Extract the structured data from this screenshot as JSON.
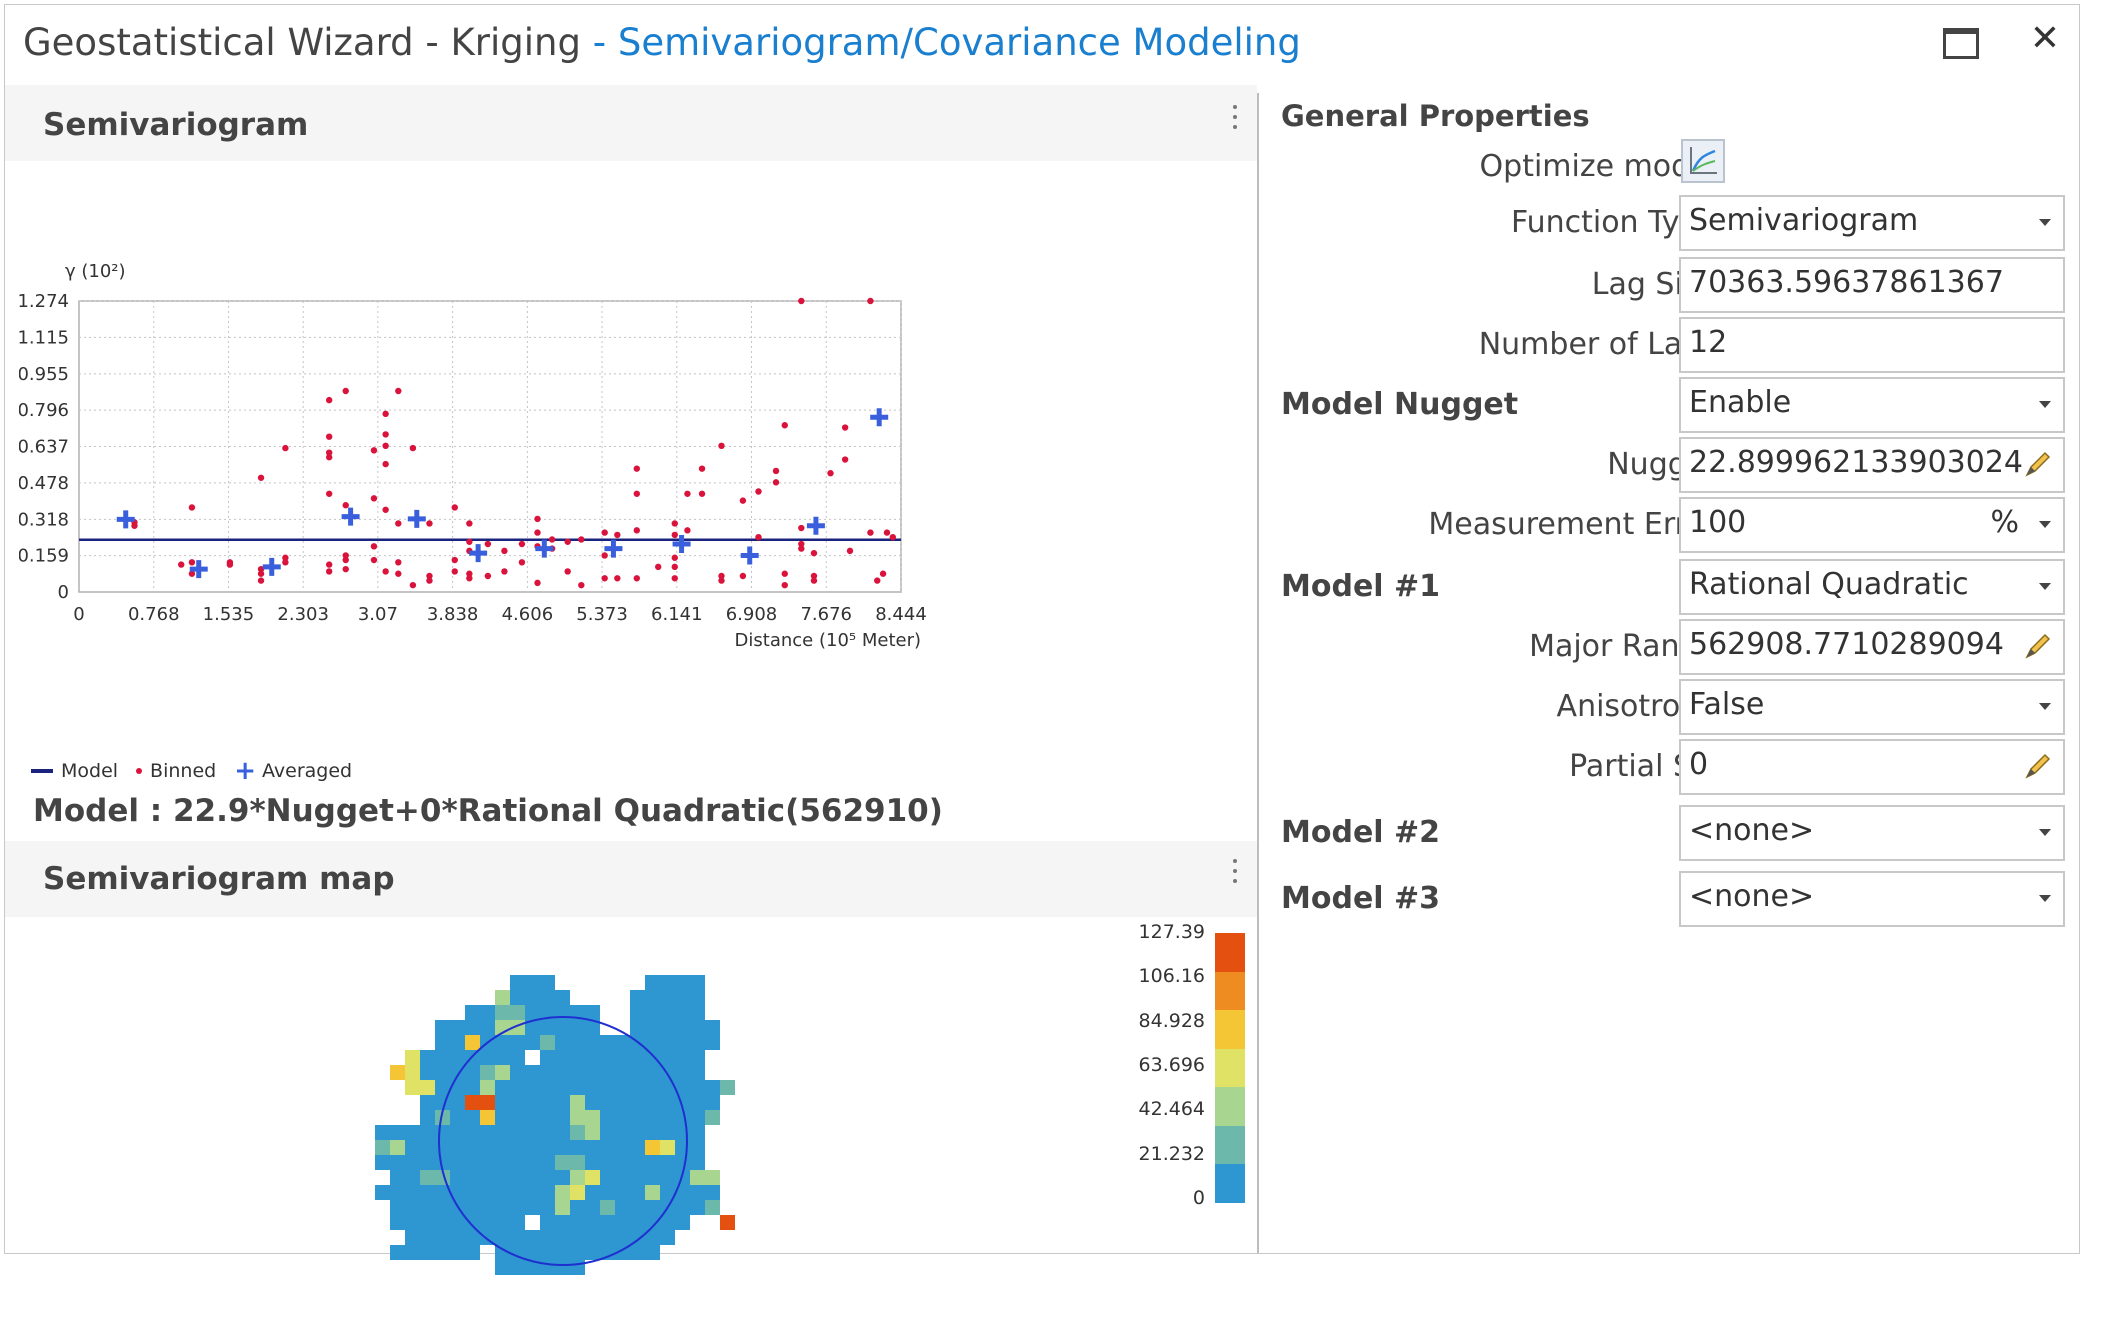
{
  "window": {
    "title_prefix": "Geostatistical Wizard - Kriging",
    "title_step": " - Semivariogram/Covariance Modeling",
    "maximize_label": "□",
    "close_label": "✕"
  },
  "semivariogram": {
    "section_title": "Semivariogram",
    "y_axis_label": "γ (10²)",
    "x_axis_label": "Distance (10⁵ Meter)",
    "y_ticks": [
      "1.274",
      "1.115",
      "0.955",
      "0.796",
      "0.637",
      "0.478",
      "0.318",
      "0.159",
      "0"
    ],
    "x_ticks": [
      "0",
      "0.768",
      "1.535",
      "2.303",
      "3.07",
      "3.838",
      "4.606",
      "5.373",
      "6.141",
      "6.908",
      "7.676",
      "8.444"
    ],
    "legend": {
      "model": "Model",
      "binned": "Binned",
      "averaged": "Averaged"
    },
    "model_equation": "Model : 22.9*Nugget+0*Rational Quadratic(562910)",
    "colors": {
      "model_line": "#1a237e",
      "binned": "#d9133b",
      "averaged": "#3a5fdc"
    }
  },
  "chart_data": {
    "type": "scatter",
    "xlabel": "Distance (10⁵ Meter)",
    "ylabel": "γ (10²)",
    "xlim": [
      0,
      8.444
    ],
    "ylim": [
      0,
      1.274
    ],
    "grid": true,
    "legend_position": "bottom-left",
    "series": [
      {
        "name": "Model",
        "kind": "line",
        "points": [
          [
            0,
            0.229
          ],
          [
            8.444,
            0.229
          ]
        ]
      },
      {
        "name": "Binned",
        "kind": "points",
        "points": [
          [
            0.57,
            0.305
          ],
          [
            0.57,
            0.29
          ],
          [
            1.16,
            0.37
          ],
          [
            1.16,
            0.13
          ],
          [
            1.16,
            0.08
          ],
          [
            1.05,
            0.12
          ],
          [
            1.55,
            0.13
          ],
          [
            1.55,
            0.12
          ],
          [
            1.87,
            0.5
          ],
          [
            1.87,
            0.1
          ],
          [
            1.87,
            0.05
          ],
          [
            1.87,
            0.08
          ],
          [
            2.12,
            0.63
          ],
          [
            2.12,
            0.15
          ],
          [
            2.12,
            0.13
          ],
          [
            2.57,
            0.84
          ],
          [
            2.57,
            0.68
          ],
          [
            2.57,
            0.61
          ],
          [
            2.57,
            0.59
          ],
          [
            2.57,
            0.43
          ],
          [
            2.57,
            0.12
          ],
          [
            2.57,
            0.09
          ],
          [
            2.74,
            0.88
          ],
          [
            2.74,
            0.38
          ],
          [
            2.74,
            0.16
          ],
          [
            2.74,
            0.14
          ],
          [
            2.74,
            0.1
          ],
          [
            3.03,
            0.62
          ],
          [
            3.03,
            0.41
          ],
          [
            3.03,
            0.2
          ],
          [
            3.03,
            0.14
          ],
          [
            3.15,
            0.78
          ],
          [
            3.15,
            0.69
          ],
          [
            3.15,
            0.64
          ],
          [
            3.15,
            0.56
          ],
          [
            3.15,
            0.36
          ],
          [
            3.15,
            0.09
          ],
          [
            3.28,
            0.88
          ],
          [
            3.28,
            0.3
          ],
          [
            3.28,
            0.13
          ],
          [
            3.28,
            0.08
          ],
          [
            3.43,
            0.63
          ],
          [
            3.43,
            0.03
          ],
          [
            3.6,
            0.3
          ],
          [
            3.6,
            0.07
          ],
          [
            3.6,
            0.05
          ],
          [
            3.86,
            0.37
          ],
          [
            3.86,
            0.14
          ],
          [
            3.86,
            0.09
          ],
          [
            4.01,
            0.3
          ],
          [
            4.01,
            0.22
          ],
          [
            4.01,
            0.18
          ],
          [
            4.01,
            0.08
          ],
          [
            4.01,
            0.06
          ],
          [
            4.2,
            0.21
          ],
          [
            4.2,
            0.07
          ],
          [
            4.37,
            0.18
          ],
          [
            4.37,
            0.09
          ],
          [
            4.55,
            0.13
          ],
          [
            4.55,
            0.21
          ],
          [
            4.71,
            0.32
          ],
          [
            4.71,
            0.26
          ],
          [
            4.71,
            0.2
          ],
          [
            4.71,
            0.04
          ],
          [
            4.86,
            0.19
          ],
          [
            4.86,
            0.23
          ],
          [
            5.02,
            0.22
          ],
          [
            5.02,
            0.09
          ],
          [
            5.16,
            0.23
          ],
          [
            5.16,
            0.03
          ],
          [
            5.4,
            0.26
          ],
          [
            5.4,
            0.16
          ],
          [
            5.4,
            0.06
          ],
          [
            5.53,
            0.25
          ],
          [
            5.53,
            0.06
          ],
          [
            5.73,
            0.54
          ],
          [
            5.73,
            0.43
          ],
          [
            5.73,
            0.27
          ],
          [
            5.73,
            0.06
          ],
          [
            5.95,
            0.11
          ],
          [
            6.12,
            0.3
          ],
          [
            6.12,
            0.25
          ],
          [
            6.12,
            0.15
          ],
          [
            6.12,
            0.11
          ],
          [
            6.12,
            0.06
          ],
          [
            6.25,
            0.43
          ],
          [
            6.25,
            0.27
          ],
          [
            6.4,
            0.54
          ],
          [
            6.4,
            0.43
          ],
          [
            6.6,
            0.64
          ],
          [
            6.6,
            0.07
          ],
          [
            6.6,
            0.05
          ],
          [
            6.82,
            0.4
          ],
          [
            6.82,
            0.07
          ],
          [
            6.98,
            0.44
          ],
          [
            6.98,
            0.24
          ],
          [
            7.16,
            0.53
          ],
          [
            7.16,
            0.48
          ],
          [
            7.25,
            0.73
          ],
          [
            7.25,
            0.08
          ],
          [
            7.25,
            0.03
          ],
          [
            7.42,
            1.274
          ],
          [
            7.42,
            0.21
          ],
          [
            7.42,
            0.19
          ],
          [
            7.42,
            0.28
          ],
          [
            7.55,
            0.17
          ],
          [
            7.55,
            0.07
          ],
          [
            7.55,
            0.05
          ],
          [
            7.72,
            0.52
          ],
          [
            7.87,
            0.72
          ],
          [
            7.87,
            0.58
          ],
          [
            7.92,
            0.18
          ],
          [
            8.13,
            1.274
          ],
          [
            8.13,
            0.26
          ],
          [
            8.2,
            0.05
          ],
          [
            8.26,
            0.08
          ],
          [
            8.3,
            0.26
          ],
          [
            8.36,
            0.24
          ]
        ]
      },
      {
        "name": "Averaged",
        "kind": "points",
        "points": [
          [
            0.48,
            0.318
          ],
          [
            1.23,
            0.1
          ],
          [
            1.98,
            0.11
          ],
          [
            2.79,
            0.33
          ],
          [
            3.47,
            0.32
          ],
          [
            4.1,
            0.17
          ],
          [
            4.78,
            0.19
          ],
          [
            5.49,
            0.19
          ],
          [
            6.19,
            0.21
          ],
          [
            6.89,
            0.16
          ],
          [
            7.57,
            0.29
          ],
          [
            8.22,
            0.765
          ]
        ]
      }
    ]
  },
  "semivariogram_map": {
    "section_title": "Semivariogram map",
    "colorbar_labels": [
      "127.39",
      "106.16",
      "84.928",
      "63.696",
      "42.464",
      "21.232",
      "0"
    ],
    "colorbar_colors": [
      "#e3500f",
      "#ee8c22",
      "#f4c636",
      "#dfe265",
      "#a8d58f",
      "#6cb9ab",
      "#2e96d1"
    ],
    "range_circle_color": "#1f2fd0"
  },
  "properties": {
    "section_title": "General Properties",
    "optimize_model": {
      "label": "Optimize model",
      "icon": "chart-optimize-icon"
    },
    "function_type": {
      "label": "Function Type",
      "value": "Semivariogram"
    },
    "lag_size": {
      "label": "Lag Size",
      "value": "70363.59637861367"
    },
    "number_of_lags": {
      "label": "Number of Lags",
      "value": "12"
    },
    "model_nugget": {
      "label": "Model Nugget",
      "value": "Enable"
    },
    "nugget": {
      "label": "Nugget",
      "value": "22.899962133903024"
    },
    "measurement_error": {
      "label": "Measurement Error",
      "value": "100",
      "unit": "%"
    },
    "model1": {
      "label": "Model #1",
      "value": "Rational Quadratic"
    },
    "major_range": {
      "label": "Major Range",
      "value": "562908.7710289094"
    },
    "anisotropy": {
      "label": "Anisotropy",
      "value": "False"
    },
    "partial_sill": {
      "label": "Partial Sill",
      "value": "0"
    },
    "model2": {
      "label": "Model #2",
      "value": "<none>"
    },
    "model3": {
      "label": "Model #3",
      "value": "<none>"
    }
  }
}
